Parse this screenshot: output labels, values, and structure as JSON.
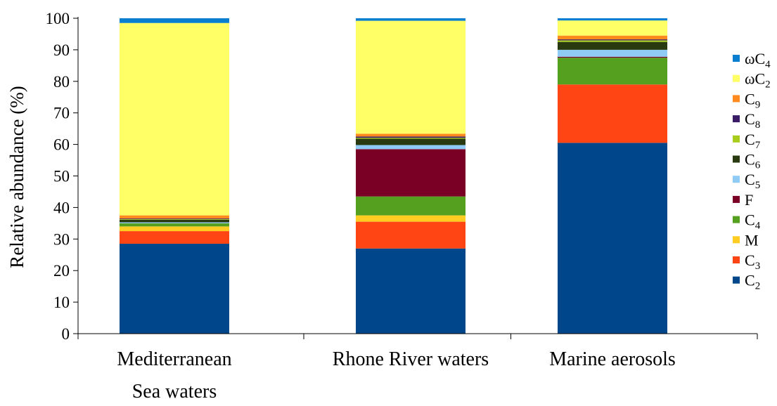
{
  "chart_data": {
    "type": "bar",
    "stacked": true,
    "ylabel": "Relative abundance (%)",
    "ylim": [
      0,
      100
    ],
    "yticks": [
      0,
      10,
      20,
      30,
      40,
      50,
      60,
      70,
      80,
      90,
      100
    ],
    "grid": false,
    "legend_position": "right",
    "categories": [
      {
        "lines": [
          "Mediterranean",
          "Sea waters"
        ]
      },
      {
        "lines": [
          "Rhone River waters"
        ]
      },
      {
        "lines": [
          "Marine aerosols"
        ]
      }
    ],
    "series": [
      {
        "label": {
          "base": "C",
          "sub": "2"
        },
        "color": "#00468B",
        "values": [
          28.5,
          27.0,
          60.5
        ]
      },
      {
        "label": {
          "base": "C",
          "sub": "3"
        },
        "color": "#FF4513",
        "values": [
          4.0,
          8.5,
          18.5
        ]
      },
      {
        "label": {
          "base": "M",
          "sub": ""
        },
        "color": "#FFCC22",
        "values": [
          1.5,
          2.0,
          0.0
        ]
      },
      {
        "label": {
          "base": "C",
          "sub": "4"
        },
        "color": "#56A020",
        "values": [
          1.0,
          6.0,
          8.5
        ]
      },
      {
        "label": {
          "base": "F",
          "sub": ""
        },
        "color": "#7A0026",
        "values": [
          0.0,
          15.0,
          0.3
        ]
      },
      {
        "label": {
          "base": "C",
          "sub": "5"
        },
        "color": "#8FCBF5",
        "values": [
          0.3,
          1.3,
          2.2
        ]
      },
      {
        "label": {
          "base": "C",
          "sub": "6"
        },
        "color": "#2A3A10",
        "values": [
          0.8,
          2.0,
          2.5
        ]
      },
      {
        "label": {
          "base": "C",
          "sub": "7"
        },
        "color": "#A8CC1C",
        "values": [
          0.2,
          0.3,
          0.5
        ]
      },
      {
        "label": {
          "base": "C",
          "sub": "8"
        },
        "color": "#3A1B66",
        "values": [
          0.2,
          0.4,
          0.3
        ]
      },
      {
        "label": {
          "base": "C",
          "sub": "9"
        },
        "color": "#FF8A1E",
        "values": [
          1.0,
          0.9,
          1.2
        ]
      },
      {
        "label": {
          "base": "ωC",
          "sub": "2"
        },
        "color": "#FFFF66",
        "values": [
          61.0,
          35.8,
          4.8
        ]
      },
      {
        "label": {
          "base": "ωC",
          "sub": "4"
        },
        "color": "#0A7FD0",
        "values": [
          1.5,
          0.8,
          0.7
        ]
      }
    ]
  }
}
